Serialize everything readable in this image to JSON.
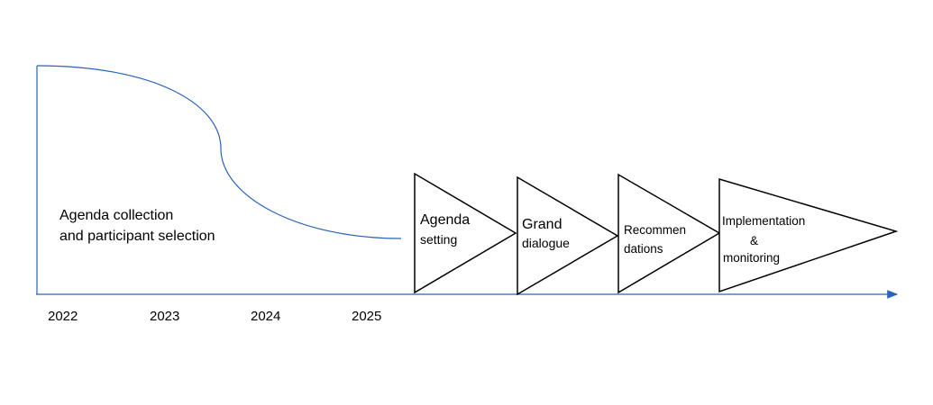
{
  "phase_label": [
    "Agenda collection",
    "and participant selection"
  ],
  "years": [
    "2022",
    "2023",
    "2024",
    "2025"
  ],
  "stages": [
    {
      "lines": [
        "Agenda",
        "setting"
      ]
    },
    {
      "lines": [
        "Grand",
        "dialogue"
      ]
    },
    {
      "lines": [
        "Recommen",
        "dations"
      ]
    },
    {
      "lines": [
        "Implementation",
        "&",
        "monitoring"
      ]
    }
  ]
}
